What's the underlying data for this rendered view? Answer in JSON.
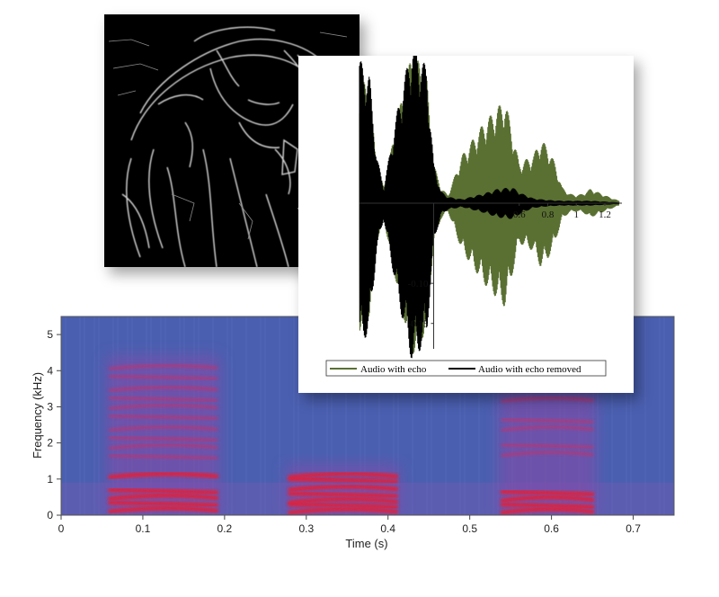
{
  "spectrogram": {
    "chart_data": {
      "type": "heatmap",
      "xlabel": "Time (s)",
      "ylabel": "Frequency (kHz)",
      "xlim": [
        0,
        0.75
      ],
      "ylim": [
        0,
        5.5
      ],
      "x_ticks": [
        "0",
        "0.1",
        "0.2",
        "0.3",
        "0.4",
        "0.5",
        "0.6",
        "0.7"
      ],
      "y_ticks": [
        "0",
        "1",
        "2",
        "3",
        "4",
        "5"
      ],
      "x_tick_values": [
        0,
        0.1,
        0.2,
        0.3,
        0.4,
        0.5,
        0.6,
        0.7
      ],
      "y_tick_values": [
        0,
        1,
        2,
        3,
        4,
        5
      ],
      "colors": {
        "background": "#4a5fb0",
        "low": "#5a6cc0",
        "high": "#e0203a"
      },
      "segments": [
        {
          "t_start": 0.06,
          "t_end": 0.19,
          "harmonic_kHz": [
            0.15,
            0.3,
            0.5,
            0.65,
            1.1,
            1.6,
            1.9,
            2.1,
            2.4,
            2.7,
            3.0,
            3.2,
            3.5,
            3.8,
            4.1
          ]
        },
        {
          "t_start": 0.28,
          "t_end": 0.41,
          "harmonic_kHz": [
            0.12,
            0.25,
            0.4,
            0.55,
            0.75,
            0.95,
            1.1
          ]
        },
        {
          "t_start": 0.54,
          "t_end": 0.65,
          "harmonic_kHz": [
            0.12,
            0.25,
            0.45,
            0.6,
            1.7,
            1.9,
            2.4,
            2.6,
            3.2
          ]
        }
      ]
    }
  },
  "waveform": {
    "chart_data": {
      "type": "area",
      "x_ticks": [
        "0.6",
        "0.8",
        "1",
        "1.2"
      ],
      "x_tick_values": [
        0.6,
        0.8,
        1.0,
        1.2
      ],
      "y_ticks": [
        "-0.10",
        "-0.15"
      ],
      "y_tick_values": [
        -0.1,
        -0.15
      ],
      "xlim": [
        -0.52,
        1.32
      ],
      "ylim": [
        -0.175,
        0.175
      ],
      "legend_position": "bottom",
      "series": [
        {
          "name": "Audio with echo",
          "color": "#5a7032",
          "envelope": [
            [
              -0.52,
              0.16
            ],
            [
              -0.45,
              0.14
            ],
            [
              -0.4,
              0.05
            ],
            [
              -0.35,
              0.02
            ],
            [
              -0.25,
              0.11
            ],
            [
              -0.15,
              0.19
            ],
            [
              -0.05,
              0.16
            ],
            [
              0.0,
              0.05
            ],
            [
              0.05,
              0.02
            ],
            [
              0.1,
              0.01
            ],
            [
              0.2,
              0.06
            ],
            [
              0.35,
              0.1
            ],
            [
              0.5,
              0.13
            ],
            [
              0.55,
              0.09
            ],
            [
              0.6,
              0.05
            ],
            [
              0.7,
              0.06
            ],
            [
              0.75,
              0.08
            ],
            [
              0.8,
              0.07
            ],
            [
              0.85,
              0.05
            ],
            [
              0.9,
              0.02
            ],
            [
              0.95,
              0.012
            ],
            [
              1.0,
              0.01
            ],
            [
              1.05,
              0.012
            ],
            [
              1.1,
              0.018
            ],
            [
              1.2,
              0.01
            ],
            [
              1.3,
              0.003
            ]
          ]
        },
        {
          "name": "Audio with echo removed",
          "color": "#000000",
          "envelope": [
            [
              -0.52,
              0.18
            ],
            [
              -0.45,
              0.16
            ],
            [
              -0.4,
              0.06
            ],
            [
              -0.35,
              0.02
            ],
            [
              -0.25,
              0.12
            ],
            [
              -0.15,
              0.2
            ],
            [
              -0.05,
              0.17
            ],
            [
              0.0,
              0.05
            ],
            [
              0.05,
              0.015
            ],
            [
              0.1,
              0.008
            ],
            [
              0.2,
              0.005
            ],
            [
              0.35,
              0.012
            ],
            [
              0.45,
              0.018
            ],
            [
              0.55,
              0.02
            ],
            [
              0.62,
              0.012
            ],
            [
              0.7,
              0.006
            ],
            [
              0.8,
              0.004
            ],
            [
              0.9,
              0.003
            ],
            [
              1.0,
              0.003
            ],
            [
              1.1,
              0.003
            ],
            [
              1.2,
              0.002
            ],
            [
              1.3,
              0.001
            ]
          ]
        }
      ]
    }
  }
}
